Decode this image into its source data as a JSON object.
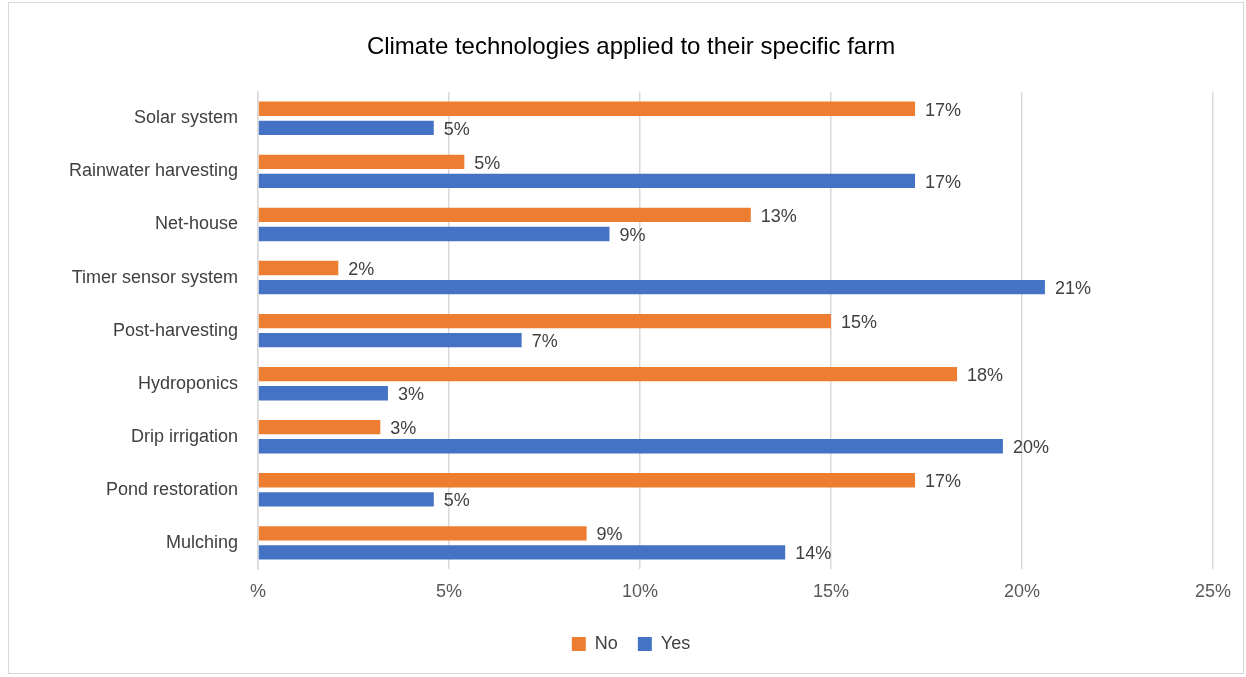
{
  "chart_data": {
    "type": "bar",
    "orientation": "horizontal",
    "title": "Climate technologies applied to their specific farm",
    "categories": [
      "Solar system",
      "Rainwater harvesting",
      "Net-house",
      "Timer sensor system",
      "Post-harvesting",
      "Hydroponics",
      "Drip irrigation",
      "Pond restoration",
      "Mulching"
    ],
    "series": [
      {
        "name": "No",
        "color": "#ed7d31",
        "values": [
          17.2,
          5.4,
          12.9,
          2.1,
          15.0,
          18.3,
          3.2,
          17.2,
          8.6
        ],
        "value_labels": [
          "17%",
          "5%",
          "13%",
          "2%",
          "15%",
          "18%",
          "3%",
          "17%",
          "9%"
        ]
      },
      {
        "name": "Yes",
        "color": "#4472c4",
        "values": [
          4.6,
          17.2,
          9.2,
          20.6,
          6.9,
          3.4,
          19.5,
          4.6,
          13.8
        ],
        "value_labels": [
          "5%",
          "17%",
          "9%",
          "21%",
          "7%",
          "3%",
          "20%",
          "5%",
          "14%"
        ]
      }
    ],
    "xlim": [
      0,
      25
    ],
    "xticks": [
      {
        "value": 0,
        "label": "%"
      },
      {
        "value": 5,
        "label": "5%"
      },
      {
        "value": 10,
        "label": "10%"
      },
      {
        "value": 15,
        "label": "15%"
      },
      {
        "value": 20,
        "label": "20%"
      },
      {
        "value": 25,
        "label": "25%"
      }
    ],
    "grid": "x",
    "legend": "bottom"
  }
}
